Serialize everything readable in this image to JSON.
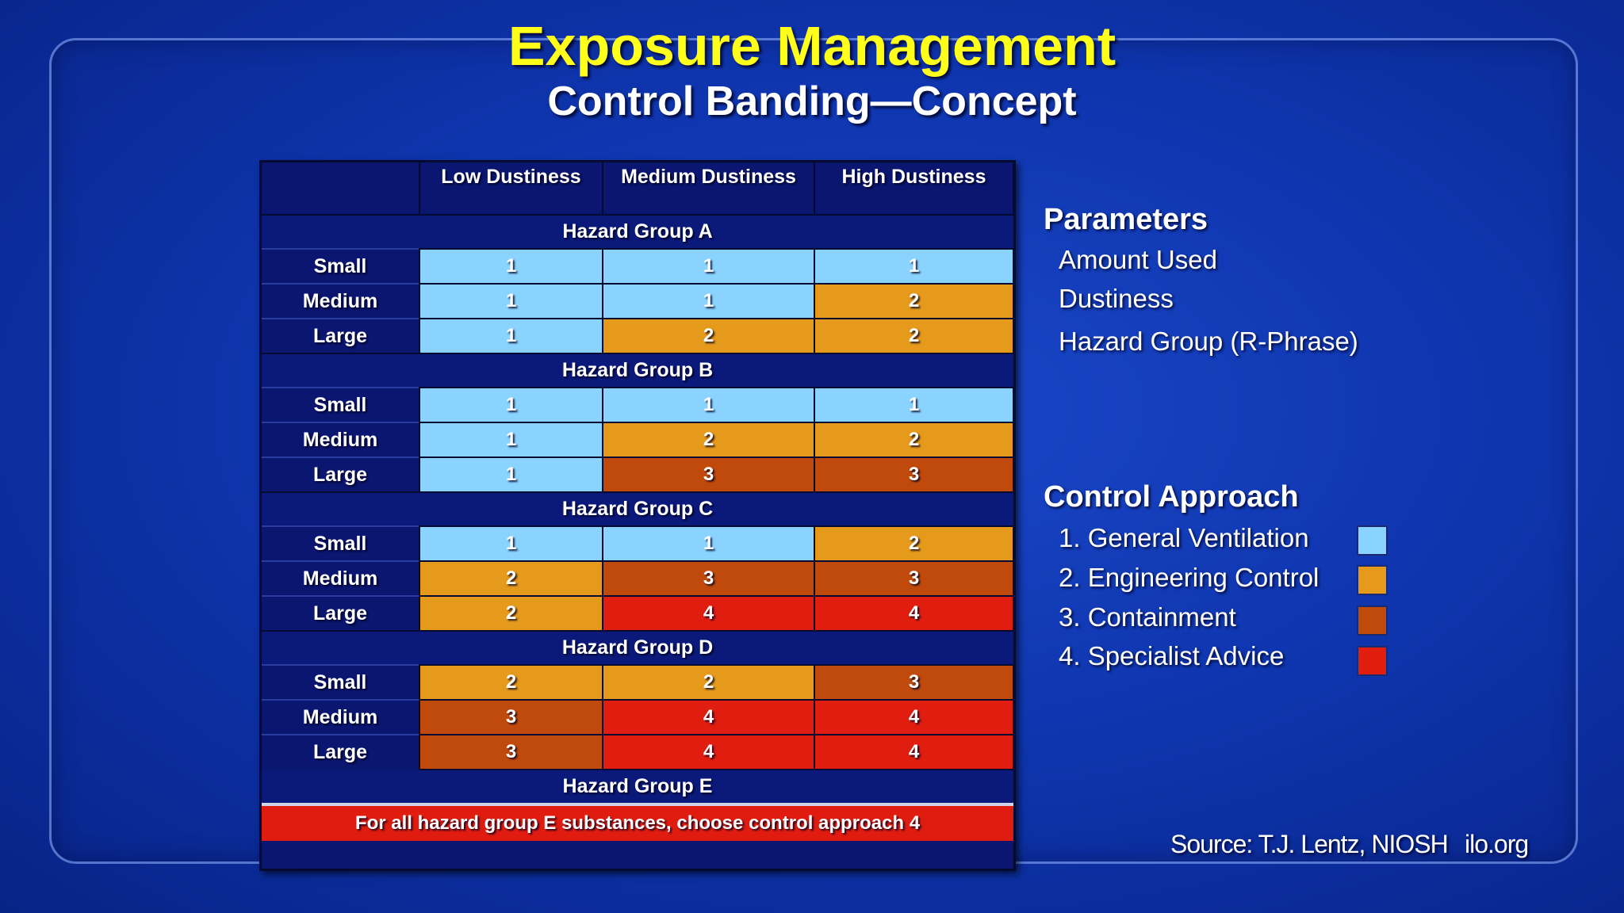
{
  "title": "Exposure Management",
  "subtitle": "Control Banding—Concept",
  "table": {
    "columns": [
      "Low Dustiness",
      "Medium Dustiness",
      "High Dustiness"
    ],
    "groups": [
      {
        "name": "Hazard Group A",
        "rows": [
          {
            "label": "Small",
            "values": [
              "1",
              "1",
              "1"
            ]
          },
          {
            "label": "Medium",
            "values": [
              "1",
              "1",
              "2"
            ]
          },
          {
            "label": "Large",
            "values": [
              "1",
              "2",
              "2"
            ]
          }
        ]
      },
      {
        "name": "Hazard Group B",
        "rows": [
          {
            "label": "Small",
            "values": [
              "1",
              "1",
              "1"
            ]
          },
          {
            "label": "Medium",
            "values": [
              "1",
              "2",
              "2"
            ]
          },
          {
            "label": "Large",
            "values": [
              "1",
              "3",
              "3"
            ]
          }
        ]
      },
      {
        "name": "Hazard Group C",
        "rows": [
          {
            "label": "Small",
            "values": [
              "1",
              "1",
              "2"
            ]
          },
          {
            "label": "Medium",
            "values": [
              "2",
              "3",
              "3"
            ]
          },
          {
            "label": "Large",
            "values": [
              "2",
              "4",
              "4"
            ]
          }
        ]
      },
      {
        "name": "Hazard Group D",
        "rows": [
          {
            "label": "Small",
            "values": [
              "2",
              "2",
              "3"
            ]
          },
          {
            "label": "Medium",
            "values": [
              "3",
              "4",
              "4"
            ]
          },
          {
            "label": "Large",
            "values": [
              "3",
              "4",
              "4"
            ]
          }
        ]
      }
    ],
    "group_e": "Hazard Group E",
    "group_e_note": "For all hazard group E substances, choose control approach 4"
  },
  "parameters": {
    "heading": "Parameters",
    "items": [
      "Amount Used",
      "Dustiness",
      "Hazard Group (R-Phrase)"
    ]
  },
  "control_approach": {
    "heading": "Control Approach",
    "items": [
      {
        "label": "1. General Ventilation",
        "color": "#8ad3ff"
      },
      {
        "label": "2. Engineering Control",
        "color": "#e59a1c"
      },
      {
        "label": "3. Containment",
        "color": "#c04a0c"
      },
      {
        "label": "4. Specialist Advice",
        "color": "#e11d10"
      }
    ]
  },
  "footer": {
    "source": "Source: T.J. Lentz, NIOSH",
    "site": "ilo.org"
  }
}
